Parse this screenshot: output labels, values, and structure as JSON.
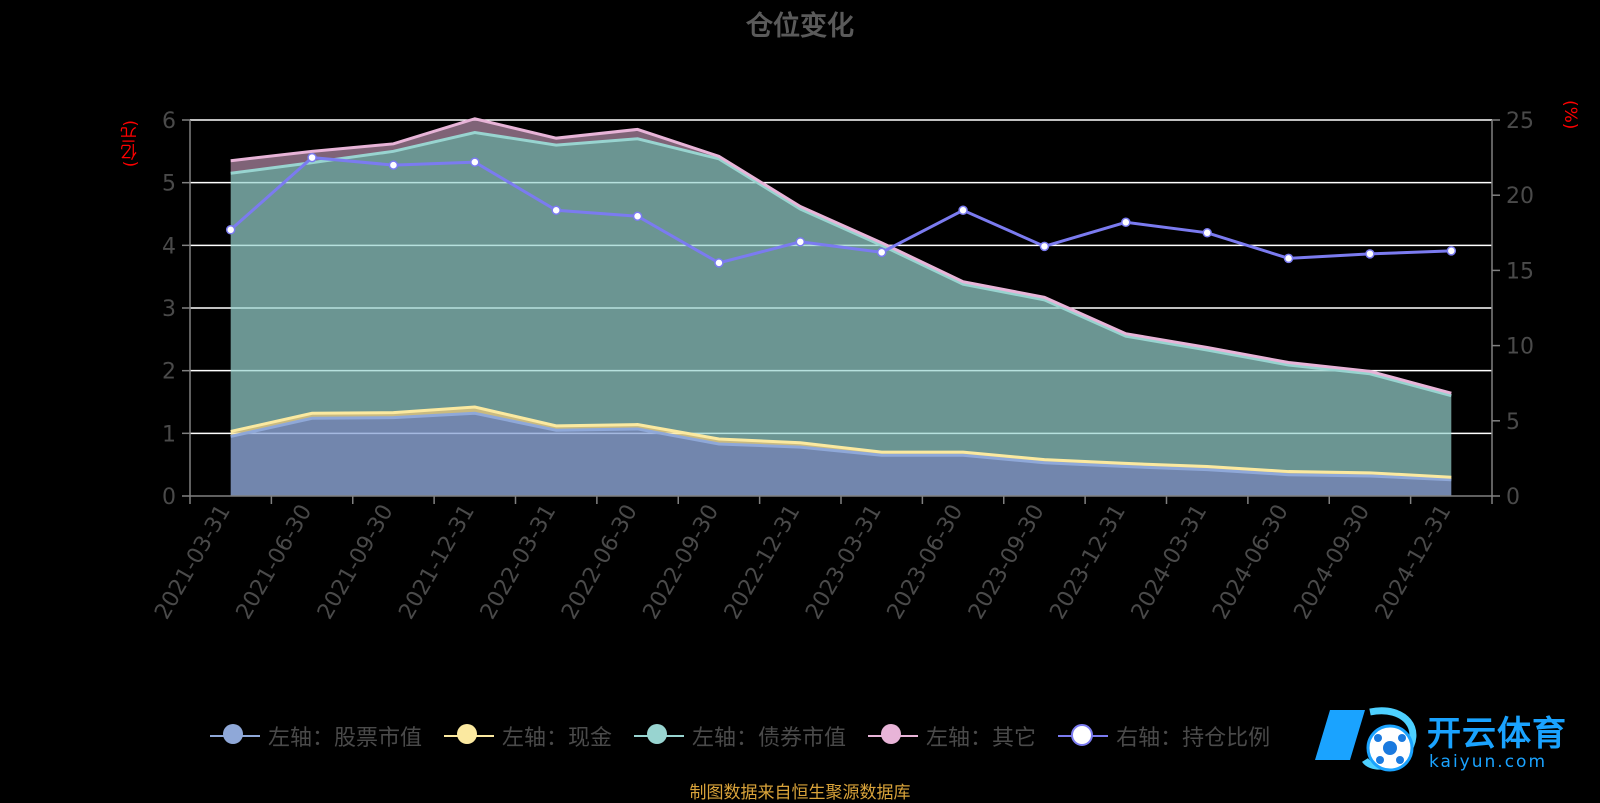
{
  "title": "仓位变化",
  "left_axis_unit": "(亿元)",
  "right_axis_unit": "(%)",
  "source_note": "制图数据来自恒生聚源数据库",
  "watermark": {
    "brand": "开云体育",
    "domain": "kaiyun.com",
    "icon": "soccer-ball-logo"
  },
  "colors": {
    "stock": "#8fa8d8",
    "cash": "#fbe9a0",
    "bond": "#98d4d0",
    "other": "#e8b4d8",
    "ratio": "#7b7bf0",
    "grid": "#ffffff",
    "axis": "#808080"
  },
  "chart_data": {
    "type": "area",
    "title": "仓位变化",
    "categories": [
      "2021-03-31",
      "2021-06-30",
      "2021-09-30",
      "2021-12-31",
      "2022-03-31",
      "2022-06-30",
      "2022-09-30",
      "2022-12-31",
      "2023-03-31",
      "2023-06-30",
      "2023-09-30",
      "2023-12-31",
      "2024-03-31",
      "2024-06-30",
      "2024-09-30",
      "2024-12-31"
    ],
    "stacked": true,
    "ylim_left": [
      0,
      6
    ],
    "yticks_left": [
      0,
      1,
      2,
      3,
      4,
      5,
      6
    ],
    "ylim_right": [
      0,
      25
    ],
    "yticks_right": [
      0,
      5,
      10,
      15,
      20,
      25
    ],
    "grid": true,
    "legend_position": "bottom",
    "series": [
      {
        "name": "左轴：股票市值",
        "axis": "left",
        "type": "area",
        "values": [
          0.95,
          1.24,
          1.25,
          1.32,
          1.05,
          1.07,
          0.83,
          0.78,
          0.65,
          0.65,
          0.53,
          0.47,
          0.42,
          0.34,
          0.32,
          0.26
        ]
      },
      {
        "name": "左轴：现金",
        "axis": "left",
        "type": "area",
        "values": [
          0.08,
          0.08,
          0.08,
          0.1,
          0.07,
          0.07,
          0.08,
          0.07,
          0.05,
          0.05,
          0.05,
          0.05,
          0.05,
          0.05,
          0.05,
          0.04
        ]
      },
      {
        "name": "左轴：债券市值",
        "axis": "left",
        "type": "area",
        "values": [
          4.12,
          4.0,
          4.17,
          4.38,
          4.48,
          4.56,
          4.47,
          3.73,
          3.3,
          2.68,
          2.55,
          2.03,
          1.86,
          1.7,
          1.58,
          1.3
        ]
      },
      {
        "name": "左轴：其它",
        "axis": "left",
        "type": "area",
        "values": [
          0.2,
          0.18,
          0.12,
          0.22,
          0.11,
          0.15,
          0.04,
          0.04,
          0.04,
          0.04,
          0.04,
          0.04,
          0.04,
          0.04,
          0.04,
          0.04
        ]
      },
      {
        "name": "右轴：持仓比例",
        "axis": "right",
        "type": "line",
        "values": [
          17.7,
          22.5,
          22.0,
          22.2,
          19.0,
          18.6,
          15.5,
          16.9,
          16.2,
          19.0,
          16.6,
          18.2,
          17.5,
          15.8,
          16.1,
          16.3
        ]
      }
    ]
  }
}
